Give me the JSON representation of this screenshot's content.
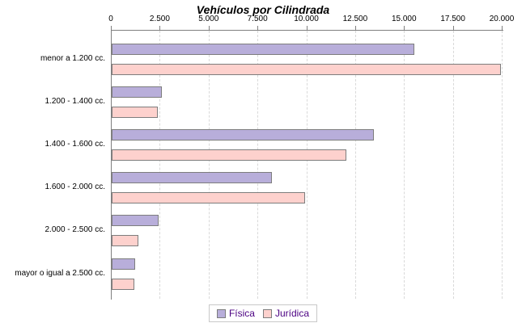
{
  "title": "Vehículos por Cilindrada",
  "chart_data": {
    "type": "bar",
    "orientation": "horizontal",
    "title": "Vehículos por Cilindrada",
    "categories": [
      "menor a 1.200 cc.",
      "1.200 - 1.400 cc.",
      "1.400 - 1.600 cc.",
      "1.600 - 2.000 cc.",
      "2.000 - 2.500 cc.",
      "mayor o igual a 2.500 cc."
    ],
    "series": [
      {
        "name": "Física",
        "color": "#b8aeda",
        "values": [
          15500,
          2550,
          13400,
          8200,
          2400,
          1200
        ]
      },
      {
        "name": "Jurídica",
        "color": "#fdd1cd",
        "values": [
          19900,
          2350,
          12000,
          9900,
          1350,
          1150
        ]
      }
    ],
    "x_axis": {
      "min": 0,
      "max": 20000,
      "tick_step": 2500,
      "tick_values": [
        0,
        2500,
        5000,
        7500,
        10000,
        12500,
        15000,
        17500,
        20000
      ],
      "tick_labels": [
        "0",
        "2.500",
        "5.000",
        "7.500",
        "10.000",
        "12.500",
        "15.000",
        "17.500",
        "20.000"
      ],
      "position": "top",
      "grid": true
    },
    "legend": {
      "position": "bottom",
      "entries": [
        "Física",
        "Jurídica"
      ]
    },
    "colors": {
      "bar_border": "#7d7d7d",
      "axis": "#808080",
      "gridline": "#d9d9d9",
      "legend_text": "#4b0082",
      "legend_border": "#c9c9c9",
      "title_text": "#000000",
      "background": "#ffffff"
    }
  }
}
